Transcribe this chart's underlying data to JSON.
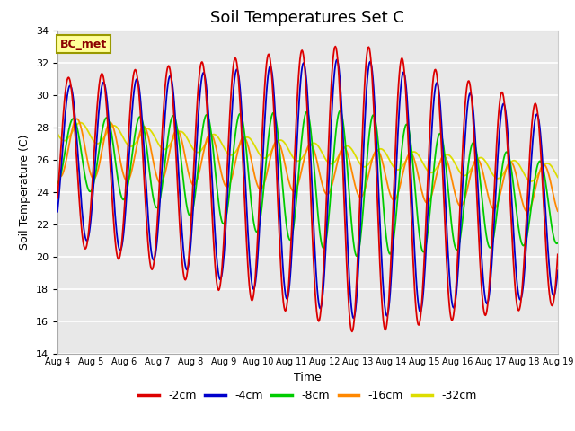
{
  "title": "Soil Temperatures Set C",
  "xlabel": "Time",
  "ylabel": "Soil Temperature (C)",
  "ylim": [
    14,
    34
  ],
  "x_tick_labels": [
    "Aug 4",
    "Aug 5",
    "Aug 6",
    "Aug 7",
    "Aug 8",
    "Aug 9",
    "Aug 10",
    "Aug 11",
    "Aug 12",
    "Aug 13",
    "Aug 14",
    "Aug 15",
    "Aug 16",
    "Aug 17",
    "Aug 18",
    "Aug 19"
  ],
  "annotation": "BC_met",
  "colors": {
    "-2cm": "#dd0000",
    "-4cm": "#0000cc",
    "-8cm": "#00cc00",
    "-16cm": "#ff8800",
    "-32cm": "#dddd00"
  },
  "axes_facecolor": "#e8e8e8",
  "figure_facecolor": "#ffffff",
  "grid_color": "#ffffff",
  "title_fontsize": 13,
  "label_fontsize": 9,
  "tick_fontsize": 8
}
